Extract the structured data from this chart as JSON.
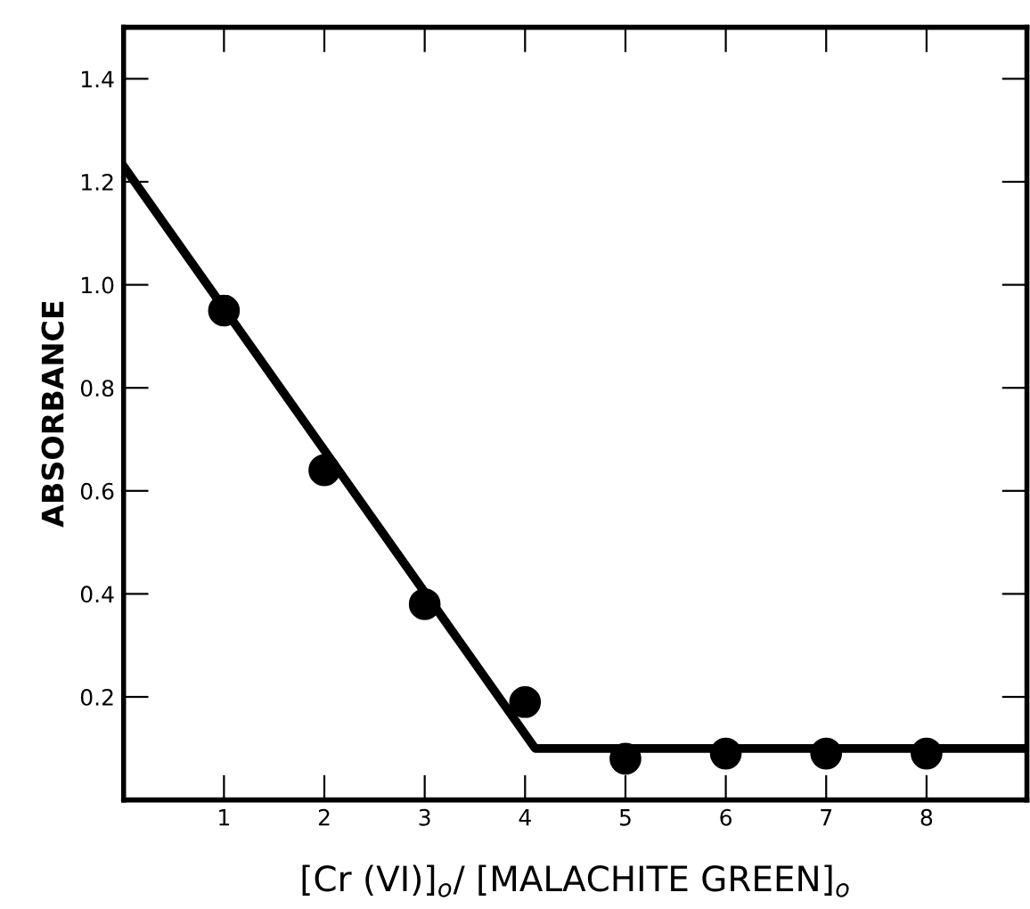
{
  "chart_data": {
    "type": "scatter",
    "xlabel": "[Cr (VI)]$_{o}$/ [MALACHITE GREEN]$_{o}$",
    "ylabel": "ABSORBANCE",
    "x": [
      1,
      2,
      3,
      4,
      5,
      6,
      7,
      8
    ],
    "series": [
      {
        "color": "#000000",
        "marker": "circle",
        "values": [
          0.95,
          0.64,
          0.38,
          0.19,
          0.08,
          0.09,
          0.09,
          0.09
        ]
      },
      {
        "type": "line",
        "color": "#000000",
        "marker": "none",
        "line_style": "solid",
        "x": [
          0,
          4.1,
          9
        ],
        "values": [
          1.23,
          0.1,
          0.1
        ]
      }
    ],
    "xlim": [
      0,
      9
    ],
    "ylim": [
      0,
      1.5
    ],
    "xticks": [
      1,
      2,
      3,
      4,
      5,
      6,
      7,
      8
    ],
    "yticks": [
      0.2,
      0.4,
      0.6,
      0.8,
      {
        "value": 1.0,
        "label": "1.0"
      },
      1.2,
      1.4
    ],
    "grid": false
  }
}
